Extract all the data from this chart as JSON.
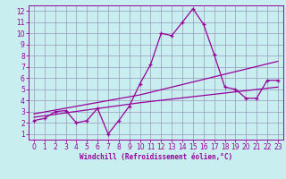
{
  "x_data": [
    0,
    1,
    2,
    3,
    4,
    5,
    6,
    7,
    8,
    9,
    10,
    11,
    12,
    13,
    14,
    15,
    16,
    17,
    18,
    19,
    20,
    21,
    22,
    23
  ],
  "y_data": [
    2.2,
    2.4,
    3.0,
    3.1,
    2.0,
    2.2,
    3.3,
    1.0,
    2.2,
    3.5,
    5.5,
    7.2,
    10.0,
    9.8,
    11.0,
    12.2,
    10.8,
    8.1,
    5.2,
    5.0,
    4.2,
    4.2,
    5.8,
    5.8
  ],
  "trend1_x": [
    0,
    10,
    23
  ],
  "trend1_y": [
    2.5,
    3.8,
    5.2
  ],
  "trend2_x": [
    0,
    10,
    23
  ],
  "trend2_y": [
    2.8,
    4.5,
    7.5
  ],
  "line_color": "#990099",
  "bg_color": "#c8eef0",
  "grid_color": "#9999bb",
  "xlabel": "Windchill (Refroidissement éolien,°C)",
  "xlim": [
    -0.5,
    23.5
  ],
  "ylim": [
    0.5,
    12.5
  ],
  "xticks": [
    0,
    1,
    2,
    3,
    4,
    5,
    6,
    7,
    8,
    9,
    10,
    11,
    12,
    13,
    14,
    15,
    16,
    17,
    18,
    19,
    20,
    21,
    22,
    23
  ],
  "yticks": [
    1,
    2,
    3,
    4,
    5,
    6,
    7,
    8,
    9,
    10,
    11,
    12
  ],
  "tick_labelsize": 5.5,
  "xlabel_fontsize": 5.5
}
